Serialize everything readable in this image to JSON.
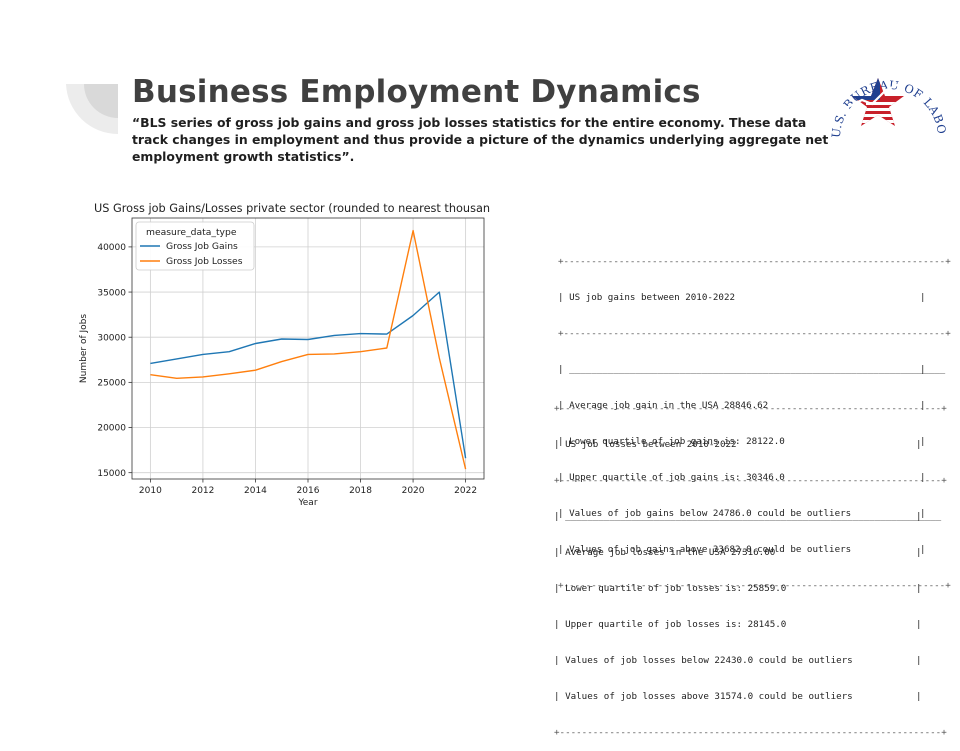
{
  "slide": {
    "title": "Business Employment Dynamics",
    "quote": "“BLS series of gross job gains and gross job losses statistics for the entire economy. These data track changes in employment and thus provide a picture of the dynamics underlying aggregate net employment growth statistics”."
  },
  "logo": {
    "text": "U.S. BUREAU OF LABOR STATISTICS",
    "colors": {
      "blue": "#1f3f8f",
      "red": "#c8202a"
    }
  },
  "chart_data": {
    "type": "line",
    "title": "US Gross job Gains/Losses private sector (rounded to nearest thousand)",
    "xlabel": "Year",
    "ylabel": "Number of Jobs",
    "x": [
      2010,
      2011,
      2012,
      2013,
      2014,
      2015,
      2016,
      2017,
      2018,
      2019,
      2020,
      2021,
      2022
    ],
    "xticks": [
      "2010",
      "2012",
      "2014",
      "2016",
      "2018",
      "2020",
      "2022"
    ],
    "yticks": [
      "15000",
      "20000",
      "25000",
      "30000",
      "35000",
      "40000"
    ],
    "xlim": [
      2009.3,
      2022.7
    ],
    "ylim": [
      14300,
      43200
    ],
    "grid": true,
    "legend_title": "measure_data_type",
    "legend_position": "top-left",
    "series": [
      {
        "name": "Gross Job Gains",
        "color": "#1f77b4",
        "values": [
          27100,
          27600,
          28100,
          28400,
          29300,
          29800,
          29750,
          30200,
          30400,
          30350,
          32400,
          35000,
          16600
        ]
      },
      {
        "name": "Gross Job Losses",
        "color": "#ff7f0e",
        "values": [
          25850,
          25450,
          25600,
          25950,
          26350,
          27300,
          28100,
          28150,
          28400,
          28800,
          41800,
          27700,
          15400
        ]
      }
    ]
  },
  "gains_box": {
    "header": "US job gains between 2010-2022",
    "lines": [
      "Average job gain in the USA 28846.62",
      "Lower quartile of job gains is: 28122.0",
      "Upper quartile of job gains is: 30346.0",
      "Values of job gains below 24786.0 could be outliers",
      "Values of job gains above 33682.0 could be outliers"
    ]
  },
  "losses_box": {
    "header": "US job losses between 2010-2022",
    "lines": [
      "Average job losses in the USA 27316.00",
      "Lower quartile of job losses is: 25859.0",
      "Upper quartile of job losses is: 28145.0",
      "Values of job losses below 22430.0 could be outliers",
      "Values of job losses above 31574.0 could be outliers"
    ]
  }
}
